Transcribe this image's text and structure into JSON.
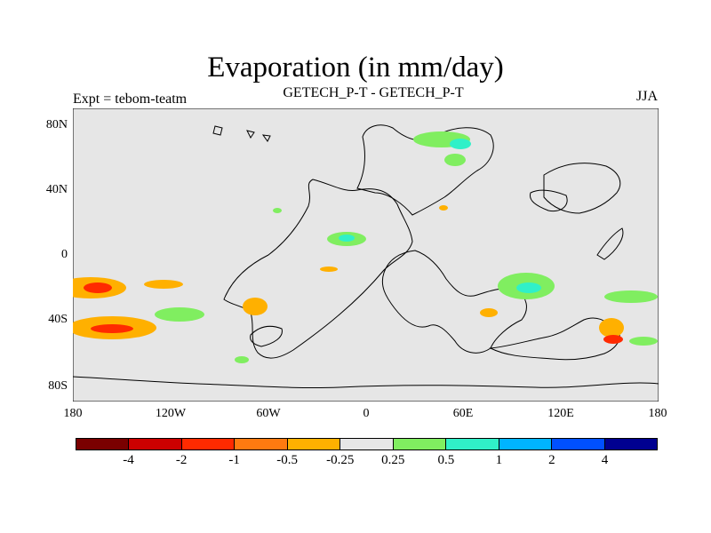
{
  "title": "Evaporation (in mm/day)",
  "subtitle": "GETECH_P-T - GETECH_P-T",
  "experiment_label": "Expt = tebom-teatm",
  "season_label": "JJA",
  "lat_ticks": [
    "80N",
    "40N",
    "0",
    "40S",
    "80S"
  ],
  "lon_ticks": [
    "180",
    "120W",
    "60W",
    "0",
    "60E",
    "120E",
    "180"
  ],
  "colorbar": {
    "colors": [
      "#7a0000",
      "#cc0000",
      "#ff2a00",
      "#ff7a10",
      "#ffb000",
      "#e6e6e6",
      "#80ee60",
      "#30f0c8",
      "#00b4ff",
      "#0050ff",
      "#000090"
    ],
    "labels": [
      "-4",
      "-2",
      "-1",
      "-0.5",
      "-0.25",
      "0.25",
      "0.5",
      "1",
      "2",
      "4"
    ]
  },
  "map": {
    "background": "#e6e6e6",
    "coastline_color": "#000000"
  }
}
